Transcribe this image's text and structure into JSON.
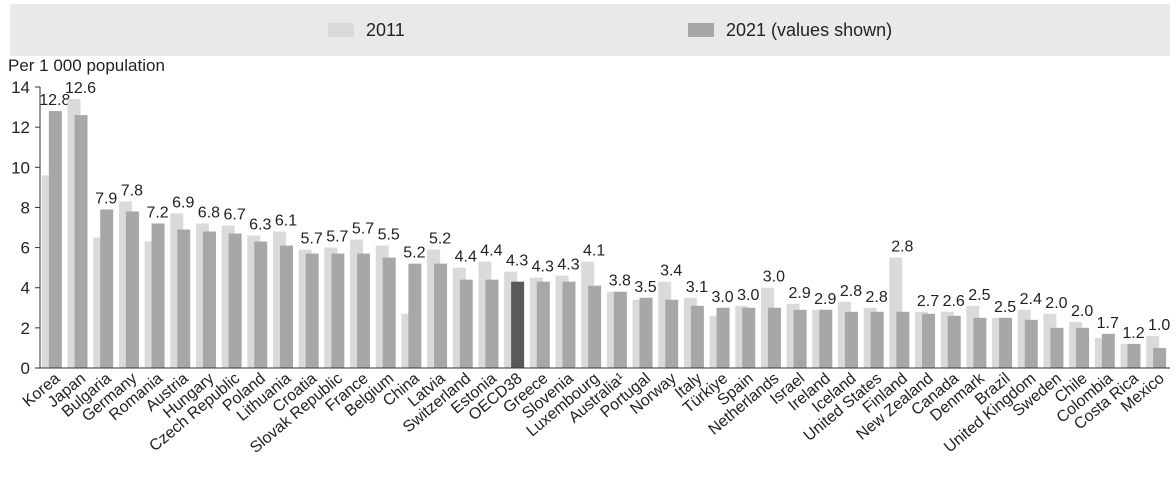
{
  "chart_data": {
    "type": "bar",
    "ylabel": "Per 1 000 population",
    "ylim": [
      0,
      14
    ],
    "yticks": [
      "0",
      "2",
      "4",
      "6",
      "8",
      "10",
      "12",
      "14"
    ],
    "legend": {
      "position": "top",
      "items": [
        {
          "label": "2011",
          "color": "#dadada"
        },
        {
          "label": "2021 (values shown)",
          "color": "#a7a7a7"
        }
      ]
    },
    "highlight": {
      "category": "OECD38",
      "color": "#595959"
    },
    "categories": [
      "Korea",
      "Japan",
      "Bulgaria",
      "Germany",
      "Romania",
      "Austria",
      "Hungary",
      "Czech Republic",
      "Poland",
      "Lithuania",
      "Croatia",
      "Slovak Republic",
      "France",
      "Belgium",
      "China",
      "Latvia",
      "Switzerland",
      "Estonia",
      "OECD38",
      "Greece",
      "Slovenia",
      "Luxembourg",
      "Australia¹",
      "Portugal",
      "Norway",
      "Italy",
      "Türkiye",
      "Spain",
      "Netherlands",
      "Israel",
      "Ireland",
      "Iceland",
      "United States",
      "Finland",
      "New Zealand",
      "Canada",
      "Denmark",
      "Brazil",
      "United Kingdom",
      "Sweden",
      "Chile",
      "Colombia",
      "Costa Rica",
      "Mexico"
    ],
    "series": [
      {
        "name": "2011",
        "values": [
          9.6,
          13.4,
          6.5,
          8.3,
          6.3,
          7.7,
          7.2,
          7.1,
          6.6,
          6.8,
          5.9,
          6.0,
          6.4,
          6.1,
          2.7,
          5.9,
          5.0,
          5.3,
          4.8,
          4.5,
          4.6,
          5.3,
          3.8,
          3.4,
          4.3,
          3.5,
          2.6,
          3.1,
          4.0,
          3.2,
          2.9,
          3.3,
          3.0,
          5.5,
          2.8,
          2.8,
          3.1,
          2.5,
          2.9,
          2.7,
          2.3,
          1.5,
          1.2,
          1.6
        ]
      },
      {
        "name": "2021 (values shown)",
        "values": [
          12.8,
          12.6,
          7.9,
          7.8,
          7.2,
          6.9,
          6.8,
          6.7,
          6.3,
          6.1,
          5.7,
          5.7,
          5.7,
          5.5,
          5.2,
          5.2,
          4.4,
          4.4,
          4.3,
          4.3,
          4.3,
          4.1,
          3.8,
          3.5,
          3.4,
          3.1,
          3.0,
          3.0,
          3.0,
          2.9,
          2.9,
          2.8,
          2.8,
          2.8,
          2.7,
          2.6,
          2.5,
          2.5,
          2.4,
          2.0,
          2.0,
          1.7,
          1.2,
          1.0
        ]
      }
    ],
    "value_labels": [
      "12.8",
      "12.6",
      "7.9",
      "7.8",
      "7.2",
      "6.9",
      "6.8",
      "6.7",
      "6.3",
      "6.1",
      "5.7",
      "5.7",
      "5.7",
      "5.5",
      "5.2",
      "5.2",
      "4.4",
      "4.4",
      "4.3",
      "4.3",
      "4.3",
      "4.1",
      "3.8",
      "3.5",
      "3.4",
      "3.1",
      "3.0",
      "3.0",
      "3.0",
      "2.9",
      "2.9",
      "2.8",
      "2.8",
      "2.8",
      "2.7",
      "2.6",
      "2.5",
      "2.5",
      "2.4",
      "2.0",
      "2.0",
      "1.7",
      "1.2",
      "1.0"
    ]
  }
}
